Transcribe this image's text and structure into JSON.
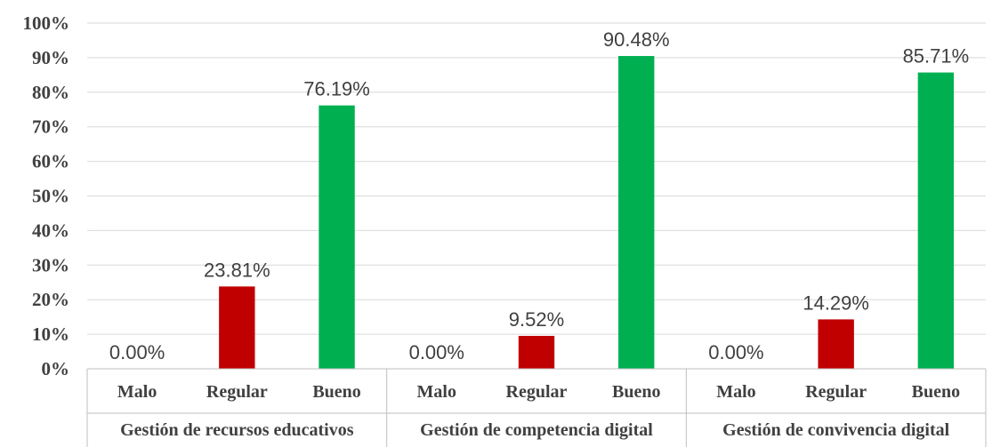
{
  "chart_data": {
    "type": "bar",
    "yticks": [
      "0%",
      "10%",
      "20%",
      "30%",
      "40%",
      "50%",
      "60%",
      "70%",
      "80%",
      "90%",
      "100%"
    ],
    "ylim": [
      0,
      100
    ],
    "grid": true,
    "legend": "none",
    "groups": [
      {
        "name": "Gestión de recursos educativos",
        "bars": [
          {
            "category": "Malo",
            "value": 0.0,
            "label": "0.00%",
            "color": "#c00000"
          },
          {
            "category": "Regular",
            "value": 23.81,
            "label": "23.81%",
            "color": "#c00000"
          },
          {
            "category": "Bueno",
            "value": 76.19,
            "label": "76.19%",
            "color": "#00b050"
          }
        ]
      },
      {
        "name": "Gestión de competencia digital",
        "bars": [
          {
            "category": "Malo",
            "value": 0.0,
            "label": "0.00%",
            "color": "#c00000"
          },
          {
            "category": "Regular",
            "value": 9.52,
            "label": "9.52%",
            "color": "#c00000"
          },
          {
            "category": "Bueno",
            "value": 90.48,
            "label": "90.48%",
            "color": "#00b050"
          }
        ]
      },
      {
        "name": "Gestión de convivencia digital",
        "bars": [
          {
            "category": "Malo",
            "value": 0.0,
            "label": "0.00%",
            "color": "#c00000"
          },
          {
            "category": "Regular",
            "value": 14.29,
            "label": "14.29%",
            "color": "#c00000"
          },
          {
            "category": "Bueno",
            "value": 85.71,
            "label": "85.71%",
            "color": "#00b050"
          }
        ]
      }
    ]
  }
}
